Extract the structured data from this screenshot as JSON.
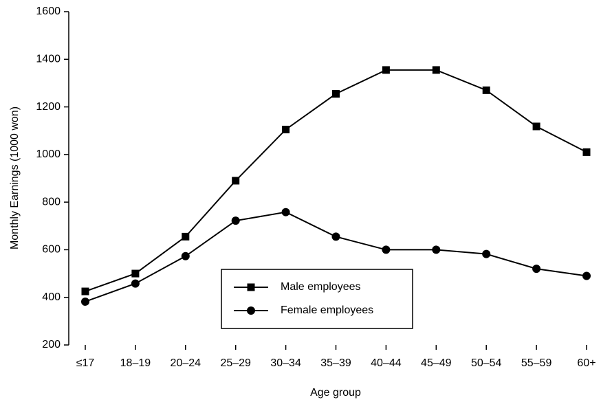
{
  "chart_data": {
    "type": "line",
    "y_label": "Monthly Earnings (1000 won)",
    "x_label": "Age group",
    "categories": [
      "≤17",
      "18–19",
      "20–24",
      "25–29",
      "30–34",
      "35–39",
      "40–44",
      "45–49",
      "50–54",
      "55–59",
      "60+"
    ],
    "series": [
      {
        "name": "Male employees",
        "color": "#000000",
        "marker": "square",
        "values": [
          425,
          500,
          655,
          890,
          1105,
          1255,
          1355,
          1355,
          1270,
          1118,
          1010
        ]
      },
      {
        "name": "Female employees",
        "color": "#000000",
        "marker": "circle",
        "values": [
          382,
          458,
          573,
          722,
          758,
          655,
          600,
          600,
          582,
          520,
          490
        ]
      }
    ],
    "ylim": [
      200,
      1600
    ],
    "yticks": [
      200,
      400,
      600,
      800,
      1000,
      1200,
      1400,
      1600
    ],
    "grid": false,
    "legend": "center"
  }
}
